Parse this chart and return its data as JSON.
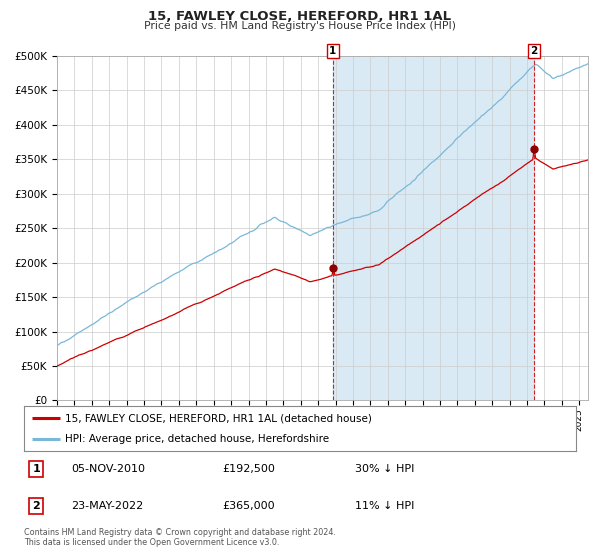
{
  "title": "15, FAWLEY CLOSE, HEREFORD, HR1 1AL",
  "subtitle": "Price paid vs. HM Land Registry's House Price Index (HPI)",
  "ylim": [
    0,
    500000
  ],
  "yticks": [
    0,
    50000,
    100000,
    150000,
    200000,
    250000,
    300000,
    350000,
    400000,
    450000,
    500000
  ],
  "hpi_color": "#7ab8d9",
  "price_color": "#cc0000",
  "sale1_date": 2010.84,
  "sale1_price": 192500,
  "sale2_date": 2022.39,
  "sale2_price": 365000,
  "sale1_label": "1",
  "sale2_label": "2",
  "legend_price_label": "15, FAWLEY CLOSE, HEREFORD, HR1 1AL (detached house)",
  "legend_hpi_label": "HPI: Average price, detached house, Herefordshire",
  "footer": "Contains HM Land Registry data © Crown copyright and database right 2024.\nThis data is licensed under the Open Government Licence v3.0.",
  "background_color": "#ffffff",
  "grid_color": "#cccccc",
  "shade_color": "#daeaf5",
  "xmin": 1995.0,
  "xmax": 2025.5
}
